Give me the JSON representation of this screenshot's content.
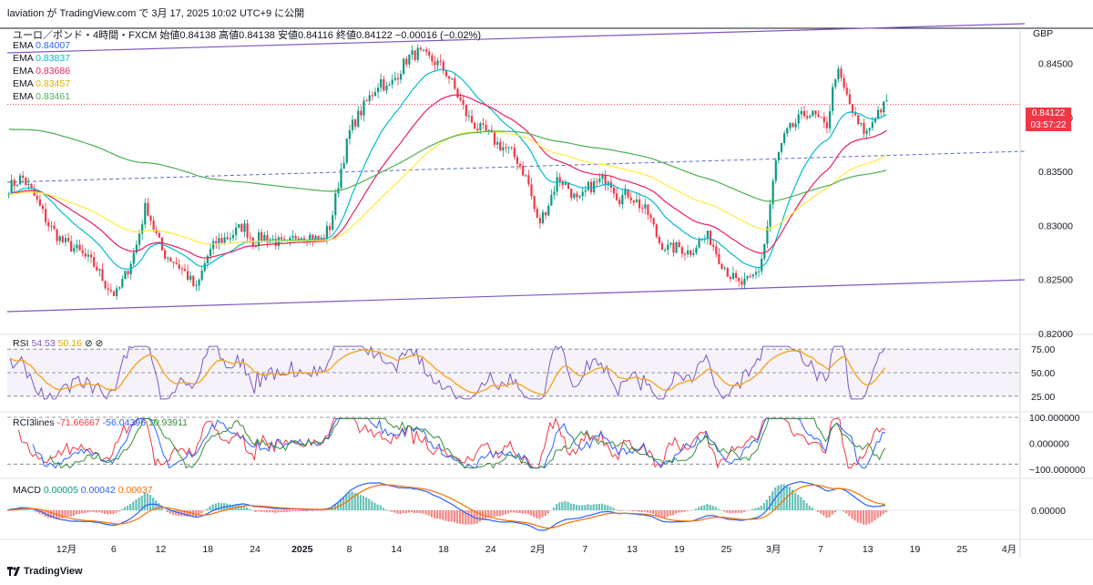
{
  "header": {
    "publish_line": "laviation が TradingView.com で 3月 17, 2025 10:02 UTC+9 に公開",
    "symbol": "ユーロ／ポンド・4時間・FXCM",
    "ohlc": "始値0.84138 高値0.84138 安値0.84116 終値0.84122 −0.00016 (−0.02%)"
  },
  "ema_legend": [
    {
      "label": "EMA",
      "value": "0.84007",
      "color": "#2962ff"
    },
    {
      "label": "EMA",
      "value": "0.83837",
      "color": "#00bcd4"
    },
    {
      "label": "EMA",
      "value": "0.83686",
      "color": "#e91e63"
    },
    {
      "label": "EMA",
      "value": "0.83457",
      "color": "#ffeb3b"
    },
    {
      "label": "EMA",
      "value": "0.83461",
      "color": "#4caf50"
    }
  ],
  "currency": "GBP",
  "current_price": {
    "value": "0.84122",
    "countdown": "03:57:22"
  },
  "rsi_legend": {
    "label": "RSI",
    "v1": "54.53",
    "v2": "50.16",
    "icons": "⊘ ⊘"
  },
  "rci_legend": {
    "label": "RCI3lines",
    "v1": "-71.66667",
    "v2": "-56.04396",
    "v3": "10.93911"
  },
  "macd_legend": {
    "label": "MACD",
    "v1": "0.00005",
    "v2": "0.00042",
    "v3": "0.00037"
  },
  "footer": {
    "brand": "TradingView"
  },
  "chart_data": {
    "type": "candlestick",
    "timeframe": "4h",
    "x_ticks": [
      "12月",
      "6",
      "12",
      "18",
      "24",
      "2025",
      "8",
      "14",
      "18",
      "24",
      "2月",
      "7",
      "13",
      "19",
      "25",
      "3月",
      "7",
      "13",
      "19",
      "25",
      "4月"
    ],
    "price_axis": {
      "ticks": [
        "0.84500",
        "0.84000",
        "0.83500",
        "0.83000",
        "0.82500",
        "0.82000"
      ],
      "ylim": [
        0.82,
        0.8475
      ]
    },
    "close_path": [
      [
        0,
        0.8335
      ],
      [
        0.4,
        0.8345
      ],
      [
        0.8,
        0.8325
      ],
      [
        1.2,
        0.83
      ],
      [
        1.6,
        0.8285
      ],
      [
        2.0,
        0.8278
      ],
      [
        2.3,
        0.827
      ],
      [
        2.6,
        0.8262
      ],
      [
        2.9,
        0.8245
      ],
      [
        3.2,
        0.8235
      ],
      [
        3.5,
        0.8255
      ],
      [
        3.8,
        0.828
      ],
      [
        4.1,
        0.832
      ],
      [
        4.3,
        0.83
      ],
      [
        4.6,
        0.8275
      ],
      [
        5.0,
        0.8265
      ],
      [
        5.3,
        0.8255
      ],
      [
        5.6,
        0.824
      ],
      [
        5.9,
        0.827
      ],
      [
        6.2,
        0.8285
      ],
      [
        6.6,
        0.829
      ],
      [
        7.0,
        0.83
      ],
      [
        7.3,
        0.8285
      ],
      [
        7.6,
        0.829
      ],
      [
        8.0,
        0.8285
      ],
      [
        8.3,
        0.828
      ],
      [
        8.6,
        0.8292
      ],
      [
        9.0,
        0.829
      ],
      [
        9.3,
        0.8285
      ],
      [
        9.6,
        0.83
      ],
      [
        9.9,
        0.835
      ],
      [
        10.2,
        0.839
      ],
      [
        10.5,
        0.8405
      ],
      [
        10.8,
        0.842
      ],
      [
        11.1,
        0.8435
      ],
      [
        11.3,
        0.8425
      ],
      [
        11.6,
        0.844
      ],
      [
        11.9,
        0.8455
      ],
      [
        12.2,
        0.846
      ],
      [
        12.5,
        0.8455
      ],
      [
        12.8,
        0.845
      ],
      [
        13.1,
        0.844
      ],
      [
        13.4,
        0.842
      ],
      [
        13.7,
        0.84
      ],
      [
        14.0,
        0.839
      ],
      [
        14.3,
        0.8385
      ],
      [
        14.6,
        0.8375
      ],
      [
        14.9,
        0.837
      ],
      [
        15.2,
        0.836
      ],
      [
        15.5,
        0.834
      ],
      [
        15.8,
        0.83
      ],
      [
        16.1,
        0.832
      ],
      [
        16.4,
        0.8345
      ],
      [
        16.7,
        0.8335
      ],
      [
        17.0,
        0.832
      ],
      [
        17.3,
        0.8335
      ],
      [
        17.6,
        0.834
      ],
      [
        17.9,
        0.8345
      ],
      [
        18.2,
        0.8325
      ],
      [
        18.5,
        0.833
      ],
      [
        18.8,
        0.832
      ],
      [
        19.1,
        0.831
      ],
      [
        19.4,
        0.8285
      ],
      [
        19.7,
        0.8278
      ],
      [
        20.0,
        0.828
      ],
      [
        20.3,
        0.8275
      ],
      [
        20.6,
        0.8285
      ],
      [
        20.9,
        0.829
      ],
      [
        21.2,
        0.827
      ],
      [
        21.5,
        0.8255
      ],
      [
        21.8,
        0.8245
      ],
      [
        22.1,
        0.8248
      ],
      [
        22.4,
        0.826
      ],
      [
        22.6,
        0.829
      ],
      [
        22.9,
        0.836
      ],
      [
        23.2,
        0.8385
      ],
      [
        23.5,
        0.8395
      ],
      [
        23.8,
        0.8405
      ],
      [
        24.1,
        0.84
      ],
      [
        24.4,
        0.839
      ],
      [
        24.7,
        0.8445
      ],
      [
        25.0,
        0.842
      ],
      [
        25.3,
        0.8395
      ],
      [
        25.6,
        0.8385
      ],
      [
        25.9,
        0.8405
      ],
      [
        26.2,
        0.8412
      ]
    ],
    "rsi": {
      "levels": [
        25,
        50,
        75
      ],
      "axis_ticks": [
        "75.00",
        "50.00",
        "25.00"
      ]
    },
    "rci": {
      "axis_ticks": [
        "100.000000",
        "0.000000",
        "−100.000000"
      ]
    },
    "macd": {
      "axis_ticks": [
        "0.00000"
      ]
    }
  }
}
